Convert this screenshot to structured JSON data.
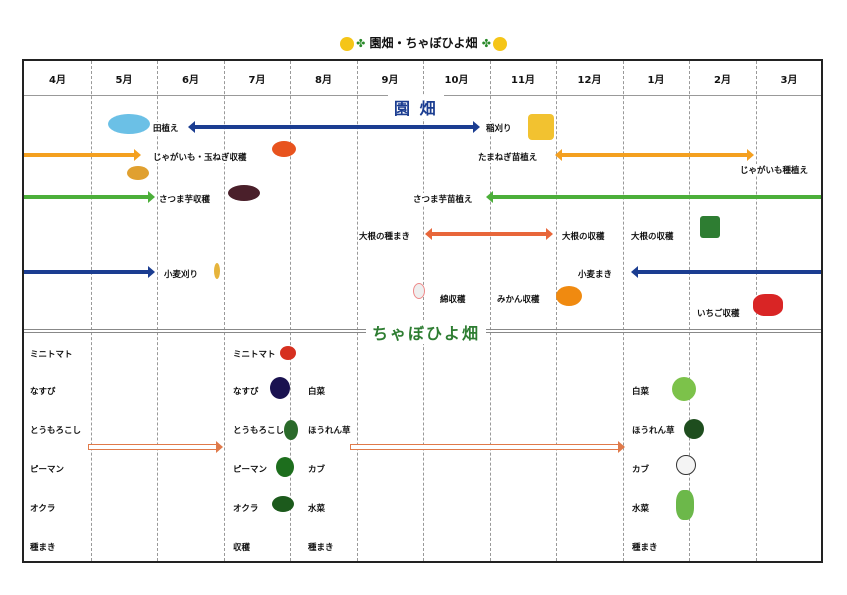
{
  "title": "園畑・ちゃぼひよ畑",
  "months": [
    "4月",
    "5月",
    "6月",
    "7月",
    "8月",
    "9月",
    "10月",
    "11月",
    "12月",
    "1月",
    "2月",
    "3月"
  ],
  "sections": {
    "garden": "園 畑",
    "chabo": "ちゃぼひよ畑"
  },
  "garden": {
    "taue": "田植え",
    "inekari": "稲刈り",
    "jagaimo_tamanegi": "じゃがいも・玉ねぎ収穫",
    "tamanegi_naehue": "たまねぎ苗植え",
    "jagaimo_taneue": "じゃがいも種植え",
    "satsumaimo_shukaku": "さつま芋収穫",
    "satsumaimo_naeue": "さつま芋苗植え",
    "daikon_tanemaki": "大根の種まき",
    "daikon_shukaku1": "大根の収穫",
    "daikon_shukaku2": "大根の収穫",
    "komugi_kari": "小麦刈り",
    "komugi_maki": "小麦まき",
    "wata": "綿収穫",
    "mikan": "みかん収穫",
    "ichigo": "いちご収穫"
  },
  "chabo": {
    "left": [
      "ミニトマト",
      "なすび",
      "とうもろこし",
      "ピーマン",
      "オクラ",
      "種まき"
    ],
    "summer": [
      "ミニトマト",
      "なすび",
      "とうもろこし",
      "ピーマン",
      "オクラ",
      "収穫"
    ],
    "autumn": [
      "白菜",
      "ほうれん草",
      "カブ",
      "水菜",
      "種まき"
    ],
    "winter": [
      "白菜",
      "ほうれん草",
      "カブ",
      "水菜",
      "種まき"
    ]
  },
  "colors": {
    "navy": "#1b3d91",
    "orange": "#f4a020",
    "green": "#4caf3a",
    "redorange": "#e8663a",
    "sectionGreen": "#2e7d32"
  }
}
